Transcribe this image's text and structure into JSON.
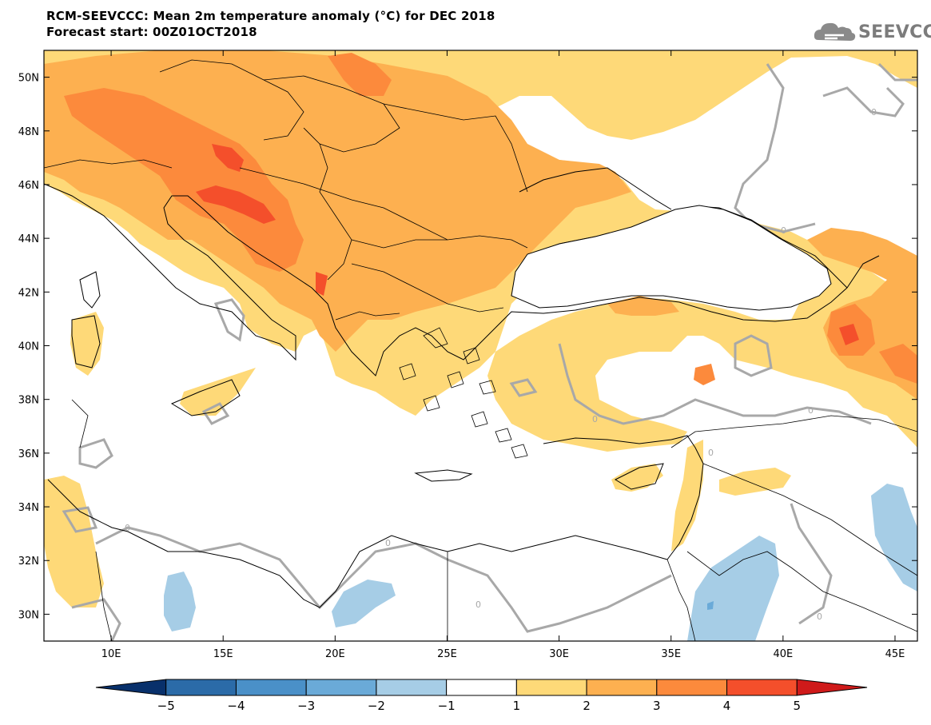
{
  "header": {
    "title": "RCM-SEEVCCC: Mean 2m temperature anomaly (°C) for DEC 2018",
    "subtitle": "Forecast start: 00Z01OCT2018"
  },
  "logo": {
    "text": "SEEVCCC",
    "icon": "cloud-icon"
  },
  "map": {
    "lon_range": [
      7,
      46
    ],
    "lat_range": [
      29,
      51
    ],
    "lon_ticks": [
      {
        "value": 10,
        "label": "10E"
      },
      {
        "value": 15,
        "label": "15E"
      },
      {
        "value": 20,
        "label": "20E"
      },
      {
        "value": 25,
        "label": "25E"
      },
      {
        "value": 30,
        "label": "30E"
      },
      {
        "value": 35,
        "label": "35E"
      },
      {
        "value": 40,
        "label": "40E"
      },
      {
        "value": 45,
        "label": "45E"
      }
    ],
    "lat_ticks": [
      {
        "value": 30,
        "label": "30N"
      },
      {
        "value": 32,
        "label": "32N"
      },
      {
        "value": 34,
        "label": "34N"
      },
      {
        "value": 36,
        "label": "36N"
      },
      {
        "value": 38,
        "label": "38N"
      },
      {
        "value": 40,
        "label": "40N"
      },
      {
        "value": 42,
        "label": "42N"
      },
      {
        "value": 44,
        "label": "44N"
      },
      {
        "value": 46,
        "label": "46N"
      },
      {
        "value": 48,
        "label": "48N"
      },
      {
        "value": 50,
        "label": "50N"
      }
    ],
    "contour_label": "0"
  },
  "colorbar": {
    "bins": [
      {
        "color": "#08306b"
      },
      {
        "color": "#2b6ba8"
      },
      {
        "color": "#4a90c8"
      },
      {
        "color": "#6aaad8"
      },
      {
        "color": "#a6cde6"
      },
      {
        "color": "#ffffff"
      },
      {
        "color": "#fed978"
      },
      {
        "color": "#fdb050"
      },
      {
        "color": "#fc8a3c"
      },
      {
        "color": "#f44f2b"
      },
      {
        "color": "#cf1a1a"
      }
    ],
    "labels": [
      "−5",
      "−4",
      "−3",
      "−2",
      "−1",
      "1",
      "2",
      "3",
      "4",
      "5"
    ]
  }
}
